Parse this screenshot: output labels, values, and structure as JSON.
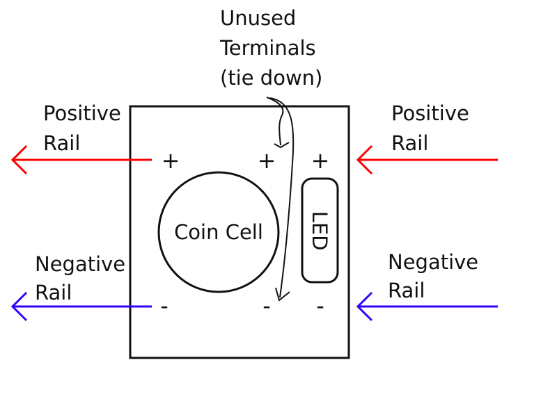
{
  "annotation": {
    "lines": [
      "Unused",
      "Terminals",
      "(tie down)"
    ]
  },
  "left_side": {
    "positive_label": [
      "Positive",
      "Rail"
    ],
    "negative_label": [
      "Negative",
      "Rail"
    ]
  },
  "right_side": {
    "positive_label": [
      "Positive",
      "Rail"
    ],
    "negative_label": [
      "Negative",
      "Rail"
    ]
  },
  "board": {
    "coin_cell_label": "Coin Cell",
    "led_label": "LED",
    "terminals_top": [
      "+",
      "+",
      "+"
    ],
    "terminals_bottom": [
      "-",
      "-",
      "-"
    ]
  },
  "colors": {
    "positive_rail": "#ff0000",
    "negative_rail": "#3300ff",
    "outline": "#111111"
  }
}
